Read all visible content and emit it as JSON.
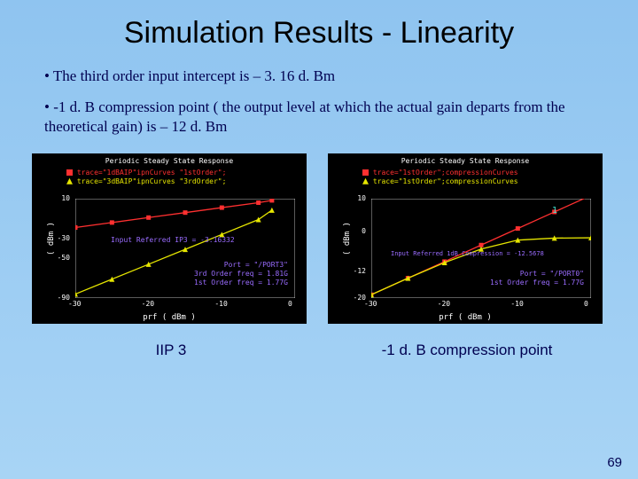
{
  "title": "Simulation Results - Linearity",
  "bullets": [
    "The third order input intercept is – 3. 16 d. Bm",
    "-1 d. B compression point ( the output level at which the actual gain departs from the theoretical gain) is – 12 d. Bm"
  ],
  "page_number": "69",
  "caption_left": "IIP 3",
  "caption_right": "-1 d. B compression point",
  "chart_left": {
    "title": "Periodic Steady State Response",
    "legend": [
      {
        "marker": "square",
        "color": "#ff3030",
        "text": "trace=\"1dBAIP\"ipnCurves \"1stOrder\";"
      },
      {
        "marker": "triangle",
        "color": "#e6e600",
        "text": "trace=\"3dBAIP\"ipnCurves \"3rdOrder\";"
      }
    ],
    "ylabel": "( dBm )",
    "xlabel": "prf ( dBm )",
    "ylim": [
      -90,
      10
    ],
    "xlim": [
      -30,
      0
    ],
    "yticks": [
      10,
      -30,
      -50,
      -90
    ],
    "xticks": [
      -30,
      -20,
      -10,
      0.0
    ],
    "series": [
      {
        "color": "#ff3030",
        "marker": "square",
        "points": [
          [
            -30,
            -19
          ],
          [
            -25,
            -14
          ],
          [
            -20,
            -9
          ],
          [
            -15,
            -4
          ],
          [
            -10,
            1
          ],
          [
            -5,
            6
          ],
          [
            -3.16,
            8.3
          ]
        ]
      },
      {
        "color": "#e6e600",
        "marker": "triangle",
        "points": [
          [
            -30,
            -86
          ],
          [
            -25,
            -71
          ],
          [
            -20,
            -56
          ],
          [
            -15,
            -41
          ],
          [
            -10,
            -26
          ],
          [
            -5,
            -11
          ],
          [
            -3.16,
            -1.5
          ]
        ]
      }
    ],
    "annotation_line1": "Input Referred IP3 = -3.16332",
    "annotation_line2": "Port = \"/PORT3\"",
    "annotation_line3": "3rd Order freq = 1.81G",
    "annotation_line4": "1st Order freq = 1.77G",
    "annotation_color": "#9a6cff"
  },
  "chart_right": {
    "title": "Periodic Steady State Response",
    "legend": [
      {
        "marker": "square",
        "color": "#ff3030",
        "text": "trace=\"1stOrder\";compressionCurves"
      },
      {
        "marker": "triangle",
        "color": "#e6e600",
        "text": "trace=\"1stOrder\";compressionCurves"
      }
    ],
    "ylabel": "( dBm )",
    "xlabel": "prf ( dBm )",
    "ylim": [
      -20,
      10
    ],
    "xlim": [
      -30,
      0
    ],
    "yticks": [
      10,
      0.0,
      -12,
      -20
    ],
    "xticks": [
      -30,
      -20,
      -10,
      0.0
    ],
    "series": [
      {
        "color": "#ff3030",
        "marker": "square",
        "points": [
          [
            -30,
            -19
          ],
          [
            -25,
            -14
          ],
          [
            -20,
            -9
          ],
          [
            -15,
            -4
          ],
          [
            -10,
            1
          ],
          [
            -5,
            6
          ],
          [
            0,
            11
          ]
        ]
      },
      {
        "color": "#e6e600",
        "marker": "triangle",
        "points": [
          [
            -30,
            -19
          ],
          [
            -25,
            -14
          ],
          [
            -20,
            -9.3
          ],
          [
            -15,
            -5.2
          ],
          [
            -10,
            -2.5
          ],
          [
            -5,
            -1.9
          ],
          [
            0,
            -1.8
          ]
        ]
      }
    ],
    "annotation_line1": "Input Referred 1dB Compression = -12.5678",
    "annotation_line2": "Port = \"/PORT0\"",
    "annotation_line3": "1st Order freq = 1.77G",
    "annotation_color": "#9a6cff",
    "marker_label": "1",
    "marker_color": "#40e0d0"
  },
  "colors": {
    "slide_bg_top": "#8fc4f0",
    "slide_bg_bottom": "#a8d4f5",
    "chart_bg": "#000000",
    "text_dark": "#000050"
  }
}
